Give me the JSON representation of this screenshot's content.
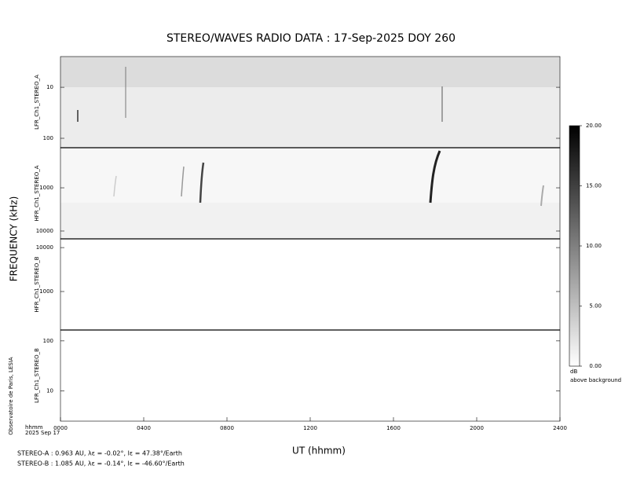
{
  "chart_data": {
    "type": "spectrogram",
    "title": "STEREO/WAVES  RADIO  DATA : 17-Sep-2025  DOY 260",
    "ylabel": "FREQUENCY (kHz)",
    "xlabel": "UT (hhmm)",
    "x_unit_label": "hhmm",
    "date_label": "2025 Sep 17",
    "credit": "Observatoire de Paris, LESIA",
    "xlim": [
      0,
      24
    ],
    "xticks": [
      {
        "value": 0,
        "label": "0000"
      },
      {
        "value": 4,
        "label": "0400"
      },
      {
        "value": 8,
        "label": "0800"
      },
      {
        "value": 12,
        "label": "1200"
      },
      {
        "value": 16,
        "label": "1600"
      },
      {
        "value": 20,
        "label": "2000"
      },
      {
        "value": 24,
        "label": "2400"
      }
    ],
    "log_y": true,
    "panels": [
      {
        "name": "LFR_Ch1_STEREO_A",
        "ylim": [
          2.5,
          153
        ],
        "invert_y": true,
        "yticks": [
          10,
          100
        ]
      },
      {
        "name": "HFR_Ch1_STEREO_A",
        "ylim": [
          118,
          15200
        ],
        "invert_y": true,
        "yticks": [
          1000,
          10000
        ]
      },
      {
        "name": "HFR_Ch1_STEREO_B",
        "ylim": [
          133,
          15800
        ],
        "invert_y": false,
        "yticks": [
          1000,
          10000
        ]
      },
      {
        "name": "LFR_Ch1_STEREO_B",
        "ylim": [
          2.5,
          165
        ],
        "invert_y": false,
        "yticks": [
          10,
          100
        ]
      }
    ],
    "colorbar": {
      "unit": "dB",
      "label": "above background",
      "lim": [
        0,
        20
      ],
      "ticks": [
        {
          "value": 0,
          "label": "0.00"
        },
        {
          "value": 5,
          "label": "5.00"
        },
        {
          "value": 10,
          "label": "10.00"
        },
        {
          "value": 15,
          "label": "15.00"
        },
        {
          "value": 20,
          "label": "20.00"
        }
      ]
    },
    "footnotes": [
      "STEREO-A : 0.963 AU, λε = -0.02°, lε = 47.38°/Earth",
      "STEREO-B : 1.085 AU, λε = -0.14°, lε = -46.60°/Earth"
    ]
  }
}
